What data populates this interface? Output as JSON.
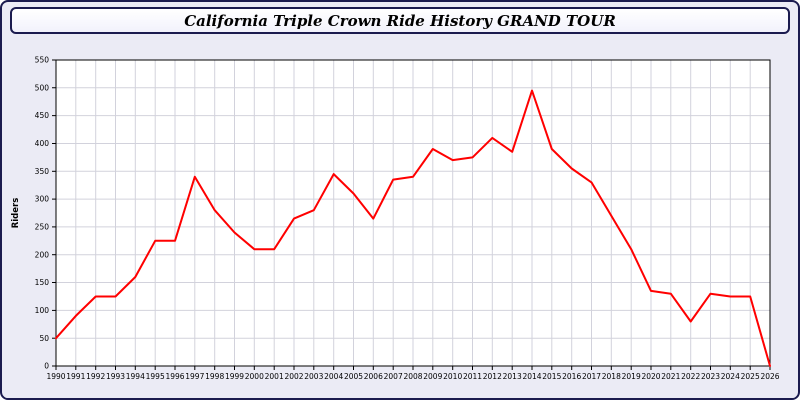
{
  "title": "California Triple Crown Ride History GRAND TOUR",
  "colors": {
    "frame_border": "#1b1b4f",
    "figure_background": "#ebebf5",
    "plot_background": "#ffffff",
    "grid": "#d2d2dc",
    "axis": "#000000",
    "line": "#ff0000"
  },
  "chart_data": {
    "type": "line",
    "title": "California Triple Crown Ride History GRAND TOUR",
    "xlabel": "",
    "ylabel": "Riders",
    "ylim": [
      0,
      550
    ],
    "ytick_step": 50,
    "grid": true,
    "legend": "none",
    "line_color": "#ff0000",
    "x": [
      1990,
      1991,
      1992,
      1993,
      1994,
      1995,
      1996,
      1997,
      1998,
      1999,
      2000,
      2001,
      2002,
      2003,
      2004,
      2005,
      2006,
      2007,
      2008,
      2009,
      2010,
      2011,
      2012,
      2013,
      2014,
      2015,
      2016,
      2017,
      2018,
      2019,
      2020,
      2021,
      2022,
      2023,
      2024,
      2025,
      2026
    ],
    "series": [
      {
        "name": "Riders",
        "values": [
          50,
          90,
          125,
          125,
          160,
          225,
          225,
          340,
          280,
          240,
          210,
          210,
          265,
          280,
          345,
          310,
          265,
          335,
          340,
          390,
          370,
          375,
          410,
          385,
          495,
          390,
          355,
          330,
          270,
          210,
          135,
          130,
          80,
          130,
          125,
          125,
          0
        ]
      }
    ]
  }
}
